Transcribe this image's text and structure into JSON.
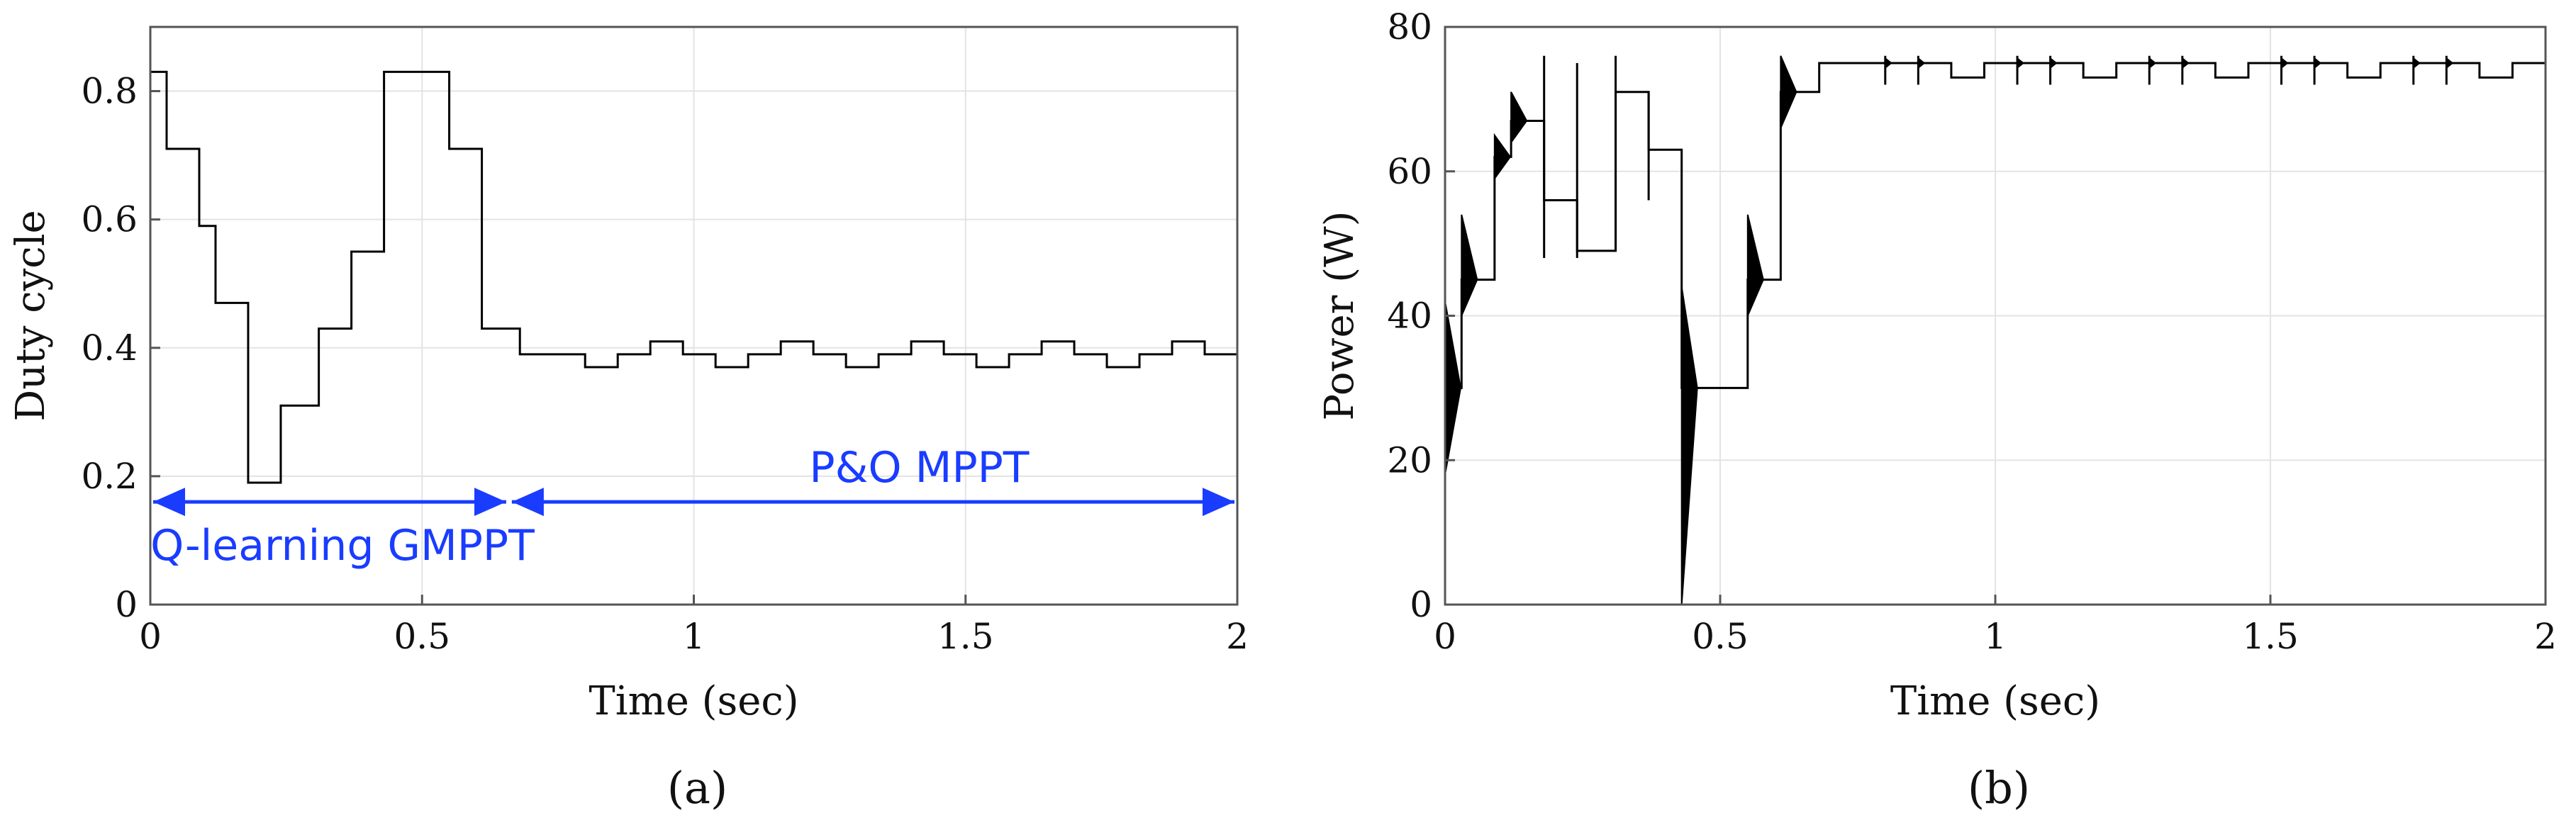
{
  "colors": {
    "annotation": "#1a3cff",
    "trace": "#000000",
    "grid": "#e3e3e3",
    "frame": "#555555"
  },
  "chart_data": [
    {
      "panel_label": "(a)",
      "type": "line",
      "step": true,
      "xlabel": "Time (sec)",
      "ylabel": "Duty cycle",
      "xlim": [
        0,
        2
      ],
      "ylim": [
        0,
        0.9
      ],
      "xticks": [
        0,
        0.5,
        1,
        1.5,
        2
      ],
      "xtick_labels": [
        "0",
        "0.5",
        "1",
        "1.5",
        "2"
      ],
      "yticks": [
        0,
        0.2,
        0.4,
        0.6,
        0.8
      ],
      "ytick_labels": [
        "0",
        "0.2",
        "0.4",
        "0.6",
        "0.8"
      ],
      "grid": true,
      "series": [
        {
          "name": "Duty cycle",
          "x": [
            0,
            0.03,
            0.09,
            0.12,
            0.18,
            0.24,
            0.31,
            0.37,
            0.43,
            0.55,
            0.61,
            0.68,
            0.8,
            0.86,
            0.92,
            0.98,
            1.04,
            1.1,
            1.16,
            1.22,
            1.28,
            1.34,
            1.4,
            1.46,
            1.52,
            1.58,
            1.64,
            1.7,
            1.76,
            1.82,
            1.88,
            1.94,
            2.0
          ],
          "y": [
            0.83,
            0.71,
            0.59,
            0.47,
            0.19,
            0.31,
            0.43,
            0.55,
            0.83,
            0.71,
            0.43,
            0.39,
            0.37,
            0.39,
            0.41,
            0.39,
            0.37,
            0.39,
            0.41,
            0.39,
            0.37,
            0.39,
            0.41,
            0.39,
            0.37,
            0.39,
            0.41,
            0.39,
            0.37,
            0.39,
            0.41,
            0.39,
            0.39
          ]
        }
      ],
      "annotations": [
        {
          "text": "Q-learning GMPPT",
          "x_start": 0,
          "x_end": 0.66,
          "y": 0.16
        },
        {
          "text": "P&O MPPT",
          "x_start": 0.66,
          "x_end": 2.0,
          "y": 0.16
        }
      ]
    },
    {
      "panel_label": "(b)",
      "type": "line",
      "step": true,
      "xlabel": "Time (sec)",
      "ylabel": "Power (W)",
      "xlim": [
        0,
        2
      ],
      "ylim": [
        0,
        80
      ],
      "xticks": [
        0,
        0.5,
        1,
        1.5,
        2
      ],
      "xtick_labels": [
        "0",
        "0.5",
        "1",
        "1.5",
        "2"
      ],
      "yticks": [
        0,
        20,
        40,
        60,
        80
      ],
      "ytick_labels": [
        "0",
        "20",
        "40",
        "60",
        "80"
      ],
      "grid": true,
      "series": [
        {
          "name": "Power",
          "x": [
            0,
            0.03,
            0.09,
            0.12,
            0.18,
            0.24,
            0.31,
            0.37,
            0.43,
            0.55,
            0.61,
            0.68,
            0.92,
            0.98,
            1.16,
            1.22,
            1.4,
            1.46,
            1.64,
            1.7,
            1.88,
            1.94,
            2.0
          ],
          "y": [
            30,
            45,
            62,
            67,
            56,
            49,
            71,
            63,
            30,
            45,
            71,
            75,
            73,
            75,
            73,
            75,
            73,
            75,
            73,
            75,
            73,
            75,
            75
          ]
        }
      ],
      "oscillation_bursts": [
        {
          "x": 0.0,
          "min": 18,
          "max": 42
        },
        {
          "x": 0.03,
          "min": 40,
          "max": 54
        },
        {
          "x": 0.09,
          "min": 59,
          "max": 65
        },
        {
          "x": 0.12,
          "min": 64,
          "max": 71
        },
        {
          "x": 0.43,
          "min": 0,
          "max": 44
        },
        {
          "x": 0.55,
          "min": 40,
          "max": 54
        },
        {
          "x": 0.61,
          "min": 66,
          "max": 76
        }
      ],
      "spikes": [
        {
          "x": 0.18,
          "min": 48,
          "max": 76
        },
        {
          "x": 0.24,
          "min": 48,
          "max": 75
        },
        {
          "x": 0.31,
          "min": 49,
          "max": 76
        },
        {
          "x": 0.37,
          "min": 56,
          "max": 71
        },
        {
          "x": 0.8,
          "min": 72,
          "max": 76
        },
        {
          "x": 0.86,
          "min": 72,
          "max": 76
        },
        {
          "x": 1.04,
          "min": 72,
          "max": 76
        },
        {
          "x": 1.1,
          "min": 72,
          "max": 76
        },
        {
          "x": 1.28,
          "min": 72,
          "max": 76
        },
        {
          "x": 1.34,
          "min": 72,
          "max": 76
        },
        {
          "x": 1.52,
          "min": 72,
          "max": 76
        },
        {
          "x": 1.58,
          "min": 72,
          "max": 76
        },
        {
          "x": 1.76,
          "min": 72,
          "max": 76
        },
        {
          "x": 1.82,
          "min": 72,
          "max": 76
        }
      ]
    }
  ]
}
